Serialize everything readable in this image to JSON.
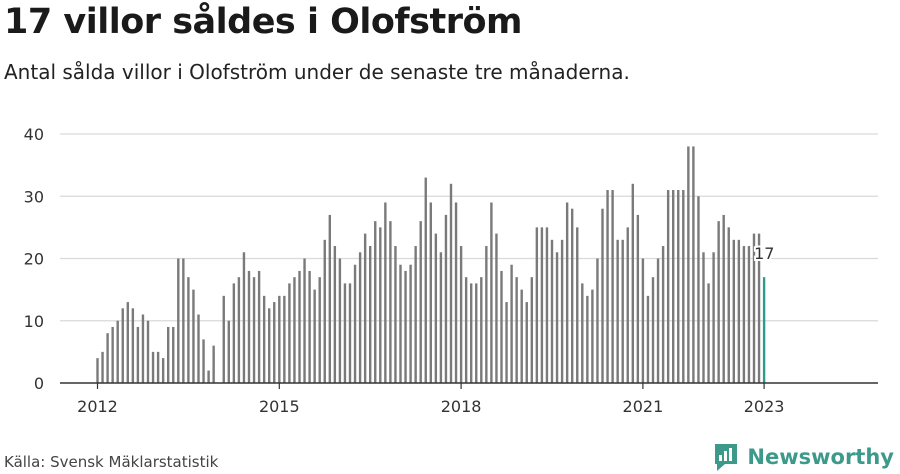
{
  "header": {
    "title": "17 villor såldes i Olofström",
    "subtitle": "Antal sålda villor i Olofström under de senaste tre månaderna."
  },
  "footer": {
    "source": "Källa: Svensk Mäklarstatistik",
    "brand": "Newsworthy"
  },
  "colors": {
    "bar": "#7a7a7a",
    "highlight": "#2a9d8f",
    "grid": "#d9d9d9",
    "brand": "#3d9a8b"
  },
  "chart_data": {
    "type": "bar",
    "title": "17 villor såldes i Olofström",
    "subtitle": "Antal sålda villor i Olofström under de senaste tre månaderna.",
    "xlabel": "",
    "ylabel": "",
    "ylim": [
      0,
      40
    ],
    "yticks": [
      "0",
      "10",
      "20",
      "30",
      "40"
    ],
    "xticks": [
      "2012",
      "2015",
      "2018",
      "2021",
      "2023"
    ],
    "grid": true,
    "start": "2012-01",
    "end": "2023-01",
    "values": [
      4,
      5,
      8,
      9,
      10,
      12,
      13,
      12,
      9,
      11,
      10,
      5,
      5,
      4,
      9,
      9,
      20,
      20,
      17,
      15,
      11,
      7,
      2,
      6,
      0,
      14,
      10,
      16,
      17,
      21,
      18,
      17,
      18,
      14,
      12,
      13,
      14,
      14,
      16,
      17,
      18,
      20,
      18,
      15,
      17,
      23,
      27,
      22,
      20,
      16,
      16,
      19,
      21,
      24,
      22,
      26,
      25,
      29,
      26,
      22,
      19,
      18,
      19,
      22,
      26,
      33,
      29,
      24,
      21,
      27,
      32,
      29,
      22,
      17,
      16,
      16,
      17,
      22,
      29,
      24,
      18,
      13,
      19,
      17,
      15,
      13,
      17,
      25,
      25,
      25,
      23,
      21,
      23,
      29,
      28,
      25,
      16,
      14,
      15,
      20,
      28,
      31,
      31,
      23,
      23,
      25,
      32,
      27,
      20,
      14,
      17,
      20,
      22,
      31,
      31,
      31,
      31,
      38,
      38,
      30,
      21,
      16,
      21,
      26,
      27,
      25,
      23,
      23,
      22,
      22,
      24,
      24,
      17
    ],
    "highlight_last": true,
    "data_labels": [
      {
        "index": "last",
        "text": "17"
      }
    ]
  }
}
